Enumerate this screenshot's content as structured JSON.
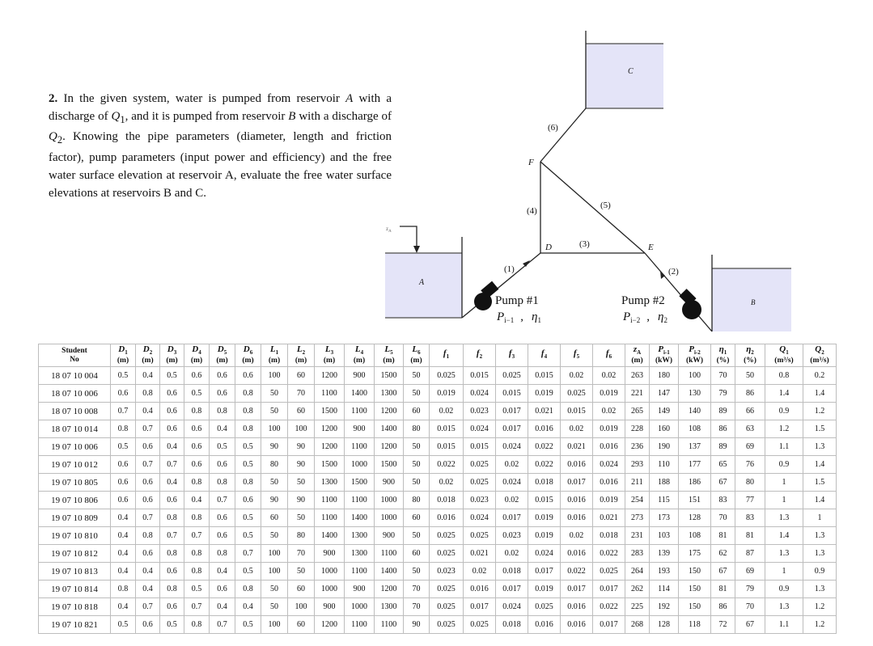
{
  "problem": {
    "number": "2.",
    "parts": [
      "In the given system, water is pumped from reservoir ",
      "A",
      " with a discharge of ",
      "Q",
      "1",
      ", and it is pumped from reservoir ",
      "B",
      " with a discharge of ",
      "Q",
      "2",
      ". Knowing the pipe parameters (diameter, length and friction factor), pump parameters (input power and efficiency) and the free water surface elevation at reservoir A, evaluate the free water surface elevations at reservoirs B and C."
    ]
  },
  "diagram": {
    "reservoirs": {
      "a": "A",
      "b": "B",
      "c": "C"
    },
    "za_label": "z",
    "za_sub": "A",
    "nodes": {
      "d": "D",
      "e": "E",
      "f": "F"
    },
    "pipes": [
      "(1)",
      "(2)",
      "(3)",
      "(4)",
      "(5)",
      "(6)"
    ],
    "pump1": {
      "title": "Pump #1",
      "power": "P",
      "power_sub": "i−1",
      "sep": ",",
      "eff": "η",
      "eff_sub": "1"
    },
    "pump2": {
      "title": "Pump #2",
      "power": "P",
      "power_sub": "i−2",
      "sep": ",",
      "eff": "η",
      "eff_sub": "2"
    },
    "fill_color": "#e4e4f8"
  },
  "table": {
    "student_header": [
      "Student",
      "No"
    ],
    "columns": [
      {
        "s": "D",
        "sub": "1",
        "u": "(m)"
      },
      {
        "s": "D",
        "sub": "2",
        "u": "(m)"
      },
      {
        "s": "D",
        "sub": "3",
        "u": "(m)"
      },
      {
        "s": "D",
        "sub": "4",
        "u": "(m)"
      },
      {
        "s": "D",
        "sub": "5",
        "u": "(m)"
      },
      {
        "s": "D",
        "sub": "6",
        "u": "(m)"
      },
      {
        "s": "L",
        "sub": "1",
        "u": "(m)"
      },
      {
        "s": "L",
        "sub": "2",
        "u": "(m)"
      },
      {
        "s": "L",
        "sub": "3",
        "u": "(m)"
      },
      {
        "s": "L",
        "sub": "4",
        "u": "(m)"
      },
      {
        "s": "L",
        "sub": "5",
        "u": "(m)"
      },
      {
        "s": "L",
        "sub": "6",
        "u": "(m)"
      },
      {
        "s": "f",
        "sub": "1",
        "u": ""
      },
      {
        "s": "f",
        "sub": "2",
        "u": ""
      },
      {
        "s": "f",
        "sub": "3",
        "u": ""
      },
      {
        "s": "f",
        "sub": "4",
        "u": ""
      },
      {
        "s": "f",
        "sub": "5",
        "u": ""
      },
      {
        "s": "f",
        "sub": "6",
        "u": ""
      },
      {
        "s": "z",
        "sub": "A",
        "u": "(m)"
      },
      {
        "s": "P",
        "sub": "i-1",
        "u": "(kW)"
      },
      {
        "s": "P",
        "sub": "i-2",
        "u": "(kW)"
      },
      {
        "s": "η",
        "sub": "1",
        "u": "(%)"
      },
      {
        "s": "η",
        "sub": "2",
        "u": "(%)"
      },
      {
        "s": "Q",
        "sub": "1",
        "u": "(m³/s)"
      },
      {
        "s": "Q",
        "sub": "2",
        "u": "(m³/s)"
      }
    ],
    "rows": [
      [
        "18 07 10 004",
        "0.5",
        "0.4",
        "0.5",
        "0.6",
        "0.6",
        "0.6",
        "100",
        "60",
        "1200",
        "900",
        "1500",
        "50",
        "0.025",
        "0.015",
        "0.025",
        "0.015",
        "0.02",
        "0.02",
        "263",
        "180",
        "100",
        "70",
        "50",
        "0.8",
        "0.2"
      ],
      [
        "18 07 10 006",
        "0.6",
        "0.8",
        "0.6",
        "0.5",
        "0.6",
        "0.8",
        "50",
        "70",
        "1100",
        "1400",
        "1300",
        "50",
        "0.019",
        "0.024",
        "0.015",
        "0.019",
        "0.025",
        "0.019",
        "221",
        "147",
        "130",
        "79",
        "86",
        "1.4",
        "1.4"
      ],
      [
        "18 07 10 008",
        "0.7",
        "0.4",
        "0.6",
        "0.8",
        "0.8",
        "0.8",
        "50",
        "60",
        "1500",
        "1100",
        "1200",
        "60",
        "0.02",
        "0.023",
        "0.017",
        "0.021",
        "0.015",
        "0.02",
        "265",
        "149",
        "140",
        "89",
        "66",
        "0.9",
        "1.2"
      ],
      [
        "18 07 10 014",
        "0.8",
        "0.7",
        "0.6",
        "0.6",
        "0.4",
        "0.8",
        "100",
        "100",
        "1200",
        "900",
        "1400",
        "80",
        "0.015",
        "0.024",
        "0.017",
        "0.016",
        "0.02",
        "0.019",
        "228",
        "160",
        "108",
        "86",
        "63",
        "1.2",
        "1.5"
      ],
      [
        "19 07 10 006",
        "0.5",
        "0.6",
        "0.4",
        "0.6",
        "0.5",
        "0.5",
        "90",
        "90",
        "1200",
        "1100",
        "1200",
        "50",
        "0.015",
        "0.015",
        "0.024",
        "0.022",
        "0.021",
        "0.016",
        "236",
        "190",
        "137",
        "89",
        "69",
        "1.1",
        "1.3"
      ],
      [
        "19 07 10 012",
        "0.6",
        "0.7",
        "0.7",
        "0.6",
        "0.6",
        "0.5",
        "80",
        "90",
        "1500",
        "1000",
        "1500",
        "50",
        "0.022",
        "0.025",
        "0.02",
        "0.022",
        "0.016",
        "0.024",
        "293",
        "110",
        "177",
        "65",
        "76",
        "0.9",
        "1.4"
      ],
      [
        "19 07 10 805",
        "0.6",
        "0.6",
        "0.4",
        "0.8",
        "0.8",
        "0.8",
        "50",
        "50",
        "1300",
        "1500",
        "900",
        "50",
        "0.02",
        "0.025",
        "0.024",
        "0.018",
        "0.017",
        "0.016",
        "211",
        "188",
        "186",
        "67",
        "80",
        "1",
        "1.5"
      ],
      [
        "19 07 10 806",
        "0.6",
        "0.6",
        "0.6",
        "0.4",
        "0.7",
        "0.6",
        "90",
        "90",
        "1100",
        "1100",
        "1000",
        "80",
        "0.018",
        "0.023",
        "0.02",
        "0.015",
        "0.016",
        "0.019",
        "254",
        "115",
        "151",
        "83",
        "77",
        "1",
        "1.4"
      ],
      [
        "19 07 10 809",
        "0.4",
        "0.7",
        "0.8",
        "0.8",
        "0.6",
        "0.5",
        "60",
        "50",
        "1100",
        "1400",
        "1000",
        "60",
        "0.016",
        "0.024",
        "0.017",
        "0.019",
        "0.016",
        "0.021",
        "273",
        "173",
        "128",
        "70",
        "83",
        "1.3",
        "1"
      ],
      [
        "19 07 10 810",
        "0.4",
        "0.8",
        "0.7",
        "0.7",
        "0.6",
        "0.5",
        "50",
        "80",
        "1400",
        "1300",
        "900",
        "50",
        "0.025",
        "0.025",
        "0.023",
        "0.019",
        "0.02",
        "0.018",
        "231",
        "103",
        "108",
        "81",
        "81",
        "1.4",
        "1.3"
      ],
      [
        "19 07 10 812",
        "0.4",
        "0.6",
        "0.8",
        "0.8",
        "0.8",
        "0.7",
        "100",
        "70",
        "900",
        "1300",
        "1100",
        "60",
        "0.025",
        "0.021",
        "0.02",
        "0.024",
        "0.016",
        "0.022",
        "283",
        "139",
        "175",
        "62",
        "87",
        "1.3",
        "1.3"
      ],
      [
        "19 07 10 813",
        "0.4",
        "0.4",
        "0.6",
        "0.8",
        "0.4",
        "0.5",
        "100",
        "50",
        "1000",
        "1100",
        "1400",
        "50",
        "0.023",
        "0.02",
        "0.018",
        "0.017",
        "0.022",
        "0.025",
        "264",
        "193",
        "150",
        "67",
        "69",
        "1",
        "0.9"
      ],
      [
        "19 07 10 814",
        "0.8",
        "0.4",
        "0.8",
        "0.5",
        "0.6",
        "0.8",
        "50",
        "60",
        "1000",
        "900",
        "1200",
        "70",
        "0.025",
        "0.016",
        "0.017",
        "0.019",
        "0.017",
        "0.017",
        "262",
        "114",
        "150",
        "81",
        "79",
        "0.9",
        "1.3"
      ],
      [
        "19 07 10 818",
        "0.4",
        "0.7",
        "0.6",
        "0.7",
        "0.4",
        "0.4",
        "50",
        "100",
        "900",
        "1000",
        "1300",
        "70",
        "0.025",
        "0.017",
        "0.024",
        "0.025",
        "0.016",
        "0.022",
        "225",
        "192",
        "150",
        "86",
        "70",
        "1.3",
        "1.2"
      ],
      [
        "19 07 10 821",
        "0.5",
        "0.6",
        "0.5",
        "0.8",
        "0.7",
        "0.5",
        "100",
        "60",
        "1200",
        "1100",
        "1100",
        "90",
        "0.025",
        "0.025",
        "0.018",
        "0.016",
        "0.016",
        "0.017",
        "268",
        "128",
        "118",
        "72",
        "67",
        "1.1",
        "1.2"
      ]
    ]
  }
}
